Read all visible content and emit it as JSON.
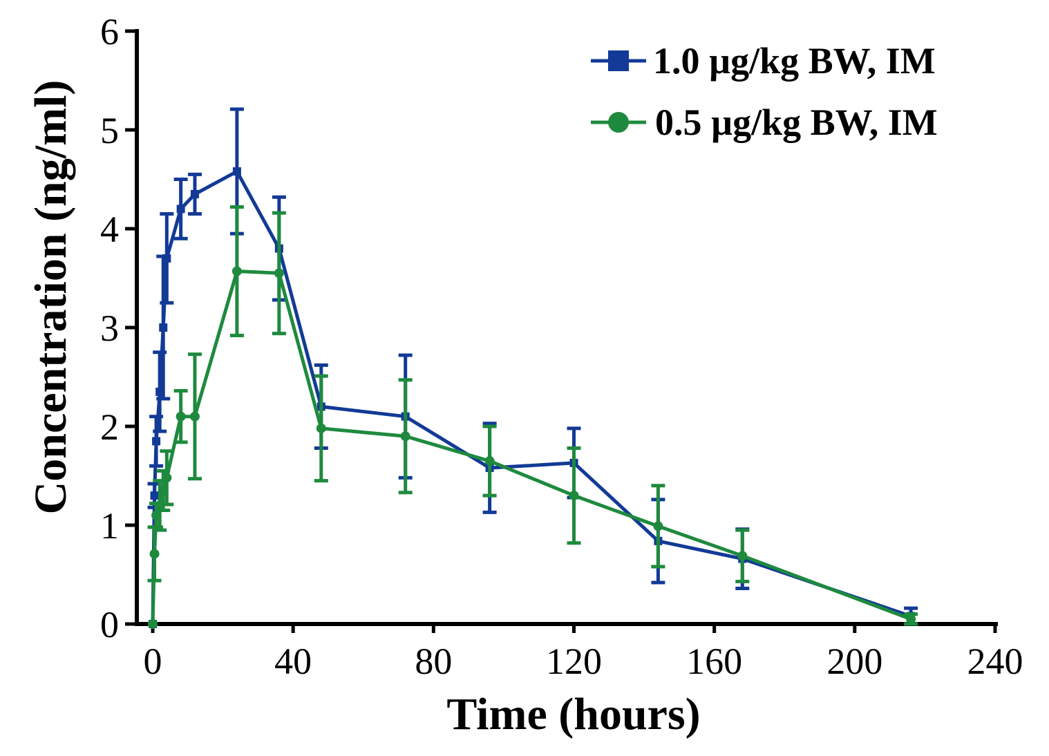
{
  "chart_data": {
    "type": "line",
    "title": "",
    "xlabel": "Time (hours)",
    "ylabel": "Concentration (ng/ml)",
    "xlim": [
      0,
      240
    ],
    "ylim": [
      0,
      6
    ],
    "xticks": [
      0,
      40,
      80,
      120,
      160,
      200,
      240
    ],
    "xtick_labels": [
      "0",
      "40",
      "80",
      "120",
      "160",
      "200",
      "240"
    ],
    "yticks": [
      0,
      1,
      2,
      3,
      4,
      5,
      6
    ],
    "ytick_labels": [
      "0",
      "1",
      "2",
      "3",
      "4",
      "5",
      "6"
    ],
    "grid": false,
    "legend_position": "top-right",
    "series": [
      {
        "name": "1.0 µg/kg BW, IM",
        "color": "#123a96",
        "marker": "square",
        "x": [
          0,
          0.5,
          1,
          2,
          3,
          4,
          8,
          12,
          24,
          36,
          48,
          72,
          96,
          120,
          144,
          168,
          216
        ],
        "y": [
          0.0,
          1.3,
          1.85,
          2.35,
          3.0,
          3.7,
          4.2,
          4.35,
          4.58,
          3.8,
          2.2,
          2.1,
          1.58,
          1.63,
          0.84,
          0.66,
          0.08
        ],
        "err": [
          0.0,
          0.12,
          0.25,
          0.4,
          0.72,
          0.45,
          0.3,
          0.2,
          0.63,
          0.52,
          0.42,
          0.62,
          0.45,
          0.35,
          0.42,
          0.3,
          0.08
        ]
      },
      {
        "name": "0.5 µg/kg BW, IM",
        "color": "#1e8a3e",
        "marker": "circle",
        "x": [
          0,
          0.5,
          1,
          2,
          3,
          4,
          8,
          12,
          24,
          36,
          48,
          72,
          96,
          120,
          144,
          168,
          216
        ],
        "y": [
          0.0,
          0.71,
          1.1,
          1.2,
          1.35,
          1.48,
          2.1,
          2.1,
          3.57,
          3.55,
          1.98,
          1.9,
          1.65,
          1.3,
          0.99,
          0.69,
          0.05
        ],
        "err": [
          0.0,
          0.27,
          0.12,
          0.25,
          0.2,
          0.27,
          0.26,
          0.63,
          0.65,
          0.61,
          0.53,
          0.57,
          0.35,
          0.48,
          0.41,
          0.26,
          0.05
        ]
      }
    ]
  }
}
